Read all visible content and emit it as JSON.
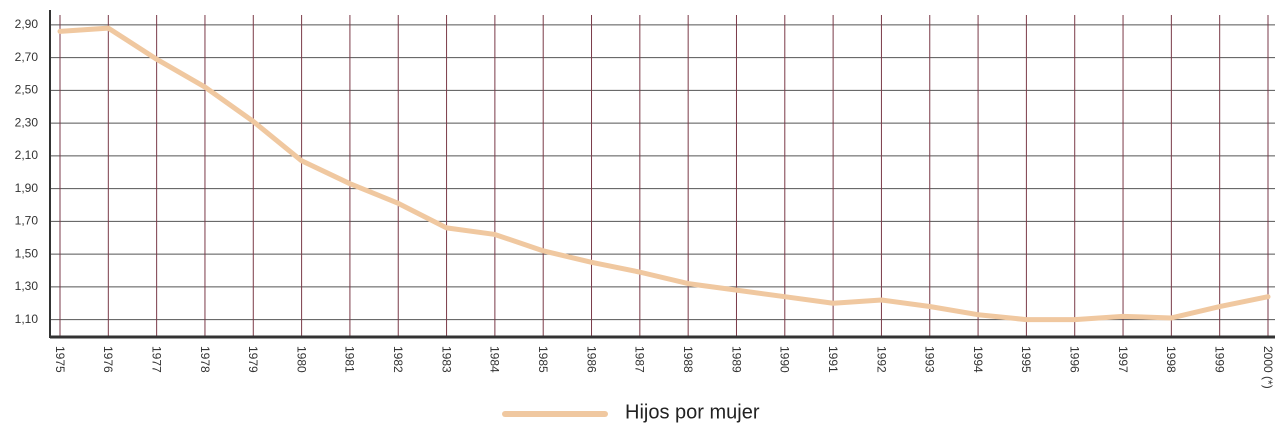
{
  "chart_data": {
    "type": "line",
    "categories": [
      "1975",
      "1976",
      "1977",
      "1978",
      "1979",
      "1980",
      "1981",
      "1982",
      "1983",
      "1984",
      "1985",
      "1986",
      "1987",
      "1988",
      "1989",
      "1990",
      "1991",
      "1992",
      "1993",
      "1994",
      "1995",
      "1996",
      "1997",
      "1998",
      "1999",
      "2000 (*)"
    ],
    "series": [
      {
        "name": "Hijos por mujer",
        "color": "#f0c8a0",
        "values": [
          2.86,
          2.88,
          2.69,
          2.52,
          2.31,
          2.07,
          1.93,
          1.81,
          1.66,
          1.62,
          1.52,
          1.45,
          1.39,
          1.32,
          1.28,
          1.24,
          1.2,
          1.22,
          1.18,
          1.13,
          1.1,
          1.1,
          1.12,
          1.11,
          1.18,
          1.24
        ]
      }
    ],
    "ylim": [
      1.0,
      2.96
    ],
    "yticks": [
      {
        "value": 1.1,
        "label": "1,10"
      },
      {
        "value": 1.3,
        "label": "1,30"
      },
      {
        "value": 1.5,
        "label": "1,50"
      },
      {
        "value": 1.7,
        "label": "1,70"
      },
      {
        "value": 1.9,
        "label": "1,90"
      },
      {
        "value": 2.1,
        "label": "2,10"
      },
      {
        "value": 2.3,
        "label": "2,30"
      },
      {
        "value": 2.5,
        "label": "2,50"
      },
      {
        "value": 2.7,
        "label": "2,70"
      },
      {
        "value": 2.9,
        "label": "2,90"
      }
    ],
    "grid": true,
    "legend": "bottom"
  }
}
